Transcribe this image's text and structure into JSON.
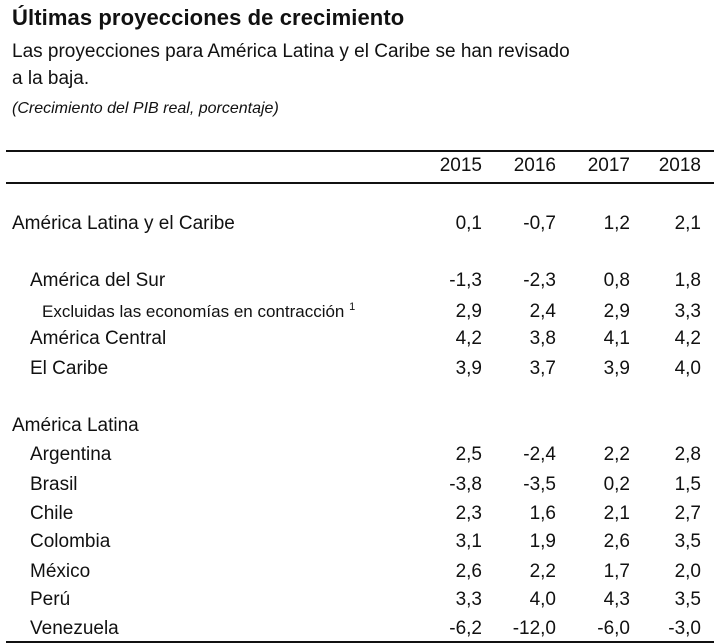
{
  "header": {
    "title": "Últimas proyecciones de crecimiento",
    "subtitle_line1": "Las proyecciones para América Latina y el Caribe se han revisado",
    "subtitle_line2": "a la baja.",
    "note": "(Crecimiento del PIB real, porcentaje)"
  },
  "table": {
    "years": [
      "2015",
      "2016",
      "2017",
      "2018"
    ],
    "rows": [
      {
        "label": "América Latina y el Caribe",
        "values": [
          "0,1",
          "-0,7",
          "1,2",
          "2,1"
        ]
      },
      {
        "label": "América del Sur",
        "values": [
          "-1,3",
          "-2,3",
          "0,8",
          "1,8"
        ]
      },
      {
        "label": "Excluidas las economías en contracción",
        "footnote": "1",
        "values": [
          "2,9",
          "2,4",
          "2,9",
          "3,3"
        ]
      },
      {
        "label": "América Central",
        "values": [
          "4,2",
          "3,8",
          "4,1",
          "4,2"
        ]
      },
      {
        "label": "El Caribe",
        "values": [
          "3,9",
          "3,7",
          "3,9",
          "4,0"
        ]
      },
      {
        "label": "América Latina",
        "values": []
      },
      {
        "label": "Argentina",
        "values": [
          "2,5",
          "-2,4",
          "2,2",
          "2,8"
        ]
      },
      {
        "label": "Brasil",
        "values": [
          "-3,8",
          "-3,5",
          "0,2",
          "1,5"
        ]
      },
      {
        "label": "Chile",
        "values": [
          "2,3",
          "1,6",
          "2,1",
          "2,7"
        ]
      },
      {
        "label": "Colombia",
        "values": [
          "3,1",
          "1,9",
          "2,6",
          "3,5"
        ]
      },
      {
        "label": "México",
        "values": [
          "2,6",
          "2,2",
          "1,7",
          "2,0"
        ]
      },
      {
        "label": "Perú",
        "values": [
          "3,3",
          "4,0",
          "4,3",
          "3,5"
        ]
      },
      {
        "label": "Venezuela",
        "values": [
          "-6,2",
          "-12,0",
          "-6,0",
          "-3,0"
        ]
      }
    ]
  }
}
